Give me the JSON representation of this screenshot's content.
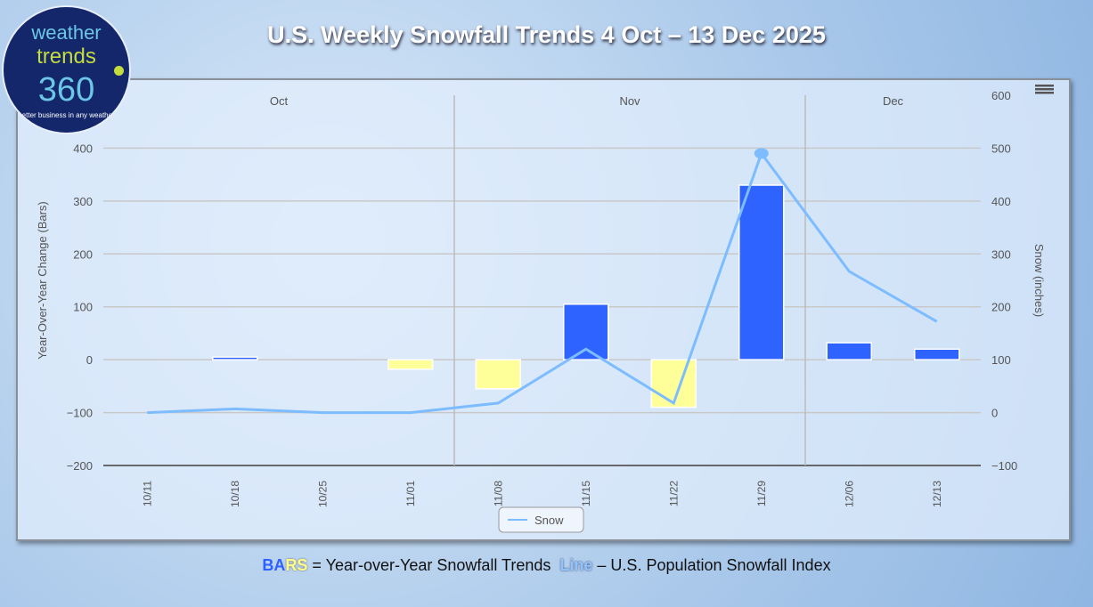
{
  "title": "U.S. Weekly Snowfall Trends 4 Oct – 13 Dec 2025",
  "logo": {
    "line1": "weather",
    "line2": "trends",
    "line3": "360",
    "tagline": "better business in any weather"
  },
  "caption": {
    "bars_a": "BA",
    "bars_b": "RS",
    "text1": " = Year-over-Year Snowfall Trends  ",
    "line": "Line",
    "text2": " – U.S. Population Snowfall Index"
  },
  "menu_icon": "hamburger-icon",
  "chart_data": {
    "type": "bar",
    "categories": [
      "10/11",
      "10/18",
      "10/25",
      "11/01",
      "11/08",
      "11/15",
      "11/22",
      "11/29",
      "12/06",
      "12/13"
    ],
    "months": [
      {
        "label": "Oct",
        "span": [
          0,
          3
        ]
      },
      {
        "label": "Nov",
        "span": [
          4,
          7
        ]
      },
      {
        "label": "Dec",
        "span": [
          8,
          9
        ]
      }
    ],
    "bars": {
      "name": "Year-over-Year Change",
      "values": [
        0,
        5,
        0,
        -18,
        -55,
        105,
        -90,
        330,
        32,
        20
      ],
      "pos_color": "#2f63ff",
      "neg_color": "#ffff99"
    },
    "line": {
      "name": "Snow",
      "values": [
        0,
        7,
        0,
        0,
        18,
        120,
        18,
        490,
        267,
        172
      ],
      "color": "#7cbcff"
    },
    "ylabel": "Year-Over-Year Change (Bars)",
    "ylim": [
      -200,
      500
    ],
    "yticks": [
      -200,
      -100,
      0,
      100,
      200,
      300,
      400
    ],
    "y2label": "Snow (inches)",
    "y2lim": [
      -100,
      600
    ],
    "y2ticks": [
      -100,
      0,
      100,
      200,
      300,
      400,
      500,
      600
    ],
    "legend": "bottom-center",
    "grid": true
  }
}
